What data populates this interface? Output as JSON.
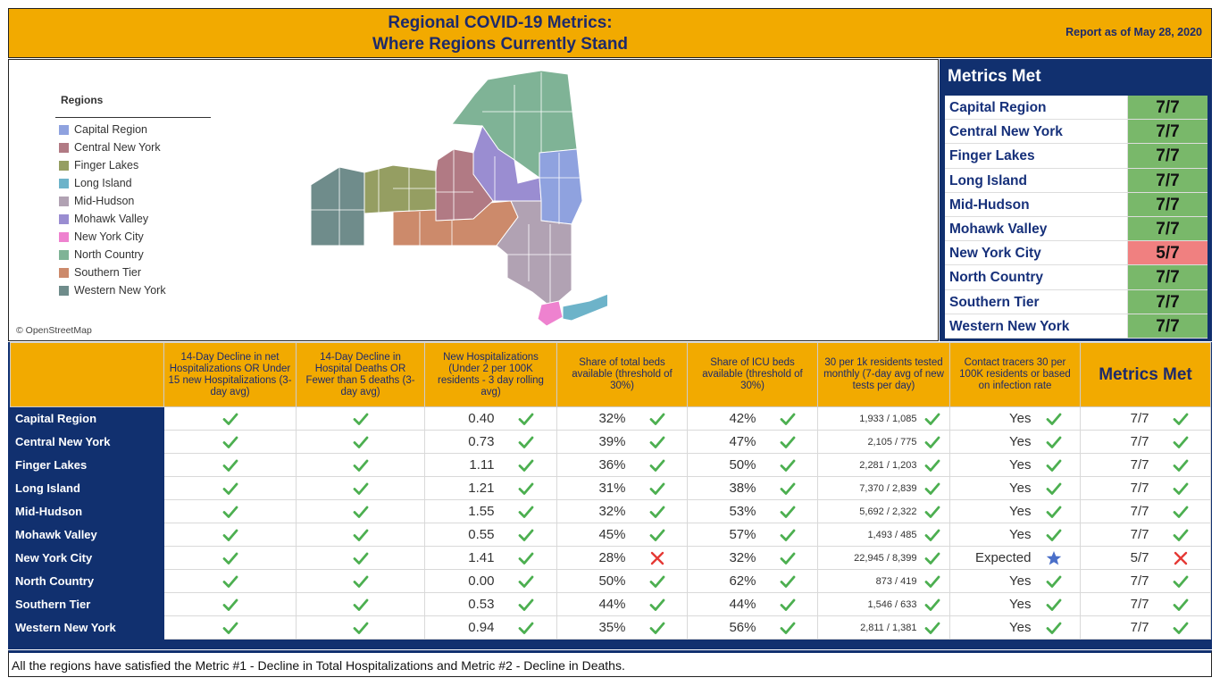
{
  "header": {
    "title_line1": "Regional COVID-19 Metrics:",
    "title_line2": "Where Regions Currently Stand",
    "report_date": "Report as of May 28, 2020"
  },
  "legend": {
    "title": "Regions",
    "items": [
      {
        "label": "Capital Region",
        "color": "#8fa2df"
      },
      {
        "label": "Central New York",
        "color": "#b17a84"
      },
      {
        "label": "Finger Lakes",
        "color": "#959e62"
      },
      {
        "label": "Long Island",
        "color": "#6db3c9"
      },
      {
        "label": "Mid-Hudson",
        "color": "#b1a2b3"
      },
      {
        "label": "Mohawk Valley",
        "color": "#9a8dd1"
      },
      {
        "label": "New York City",
        "color": "#ee82cf"
      },
      {
        "label": "North Country",
        "color": "#7fb396"
      },
      {
        "label": "Southern Tier",
        "color": "#cc8a6b"
      },
      {
        "label": "Western New York",
        "color": "#6f8c8b"
      }
    ],
    "attribution": "© OpenStreetMap"
  },
  "metrics_panel": {
    "title": "Metrics Met",
    "rows": [
      {
        "region": "Capital Region",
        "value": "7/7",
        "status": "good"
      },
      {
        "region": "Central New York",
        "value": "7/7",
        "status": "good"
      },
      {
        "region": "Finger Lakes",
        "value": "7/7",
        "status": "good"
      },
      {
        "region": "Long Island",
        "value": "7/7",
        "status": "good"
      },
      {
        "region": "Mid-Hudson",
        "value": "7/7",
        "status": "good"
      },
      {
        "region": "Mohawk Valley",
        "value": "7/7",
        "status": "good"
      },
      {
        "region": "New York City",
        "value": "5/7",
        "status": "bad"
      },
      {
        "region": "North Country",
        "value": "7/7",
        "status": "good"
      },
      {
        "region": "Southern Tier",
        "value": "7/7",
        "status": "good"
      },
      {
        "region": "Western New York",
        "value": "7/7",
        "status": "good"
      }
    ]
  },
  "table": {
    "headers": [
      "",
      "14-Day Decline in net Hospitalizations OR Under 15 new Hospitalizations (3-day avg)",
      "14-Day Decline in Hospital Deaths OR Fewer than 5 deaths (3-day avg)",
      "New Hospitalizations (Under 2 per 100K residents - 3 day rolling avg)",
      "Share of total beds available (threshold of 30%)",
      "Share of ICU beds available (threshold of 30%)",
      "30 per 1k residents tested monthly (7-day avg of new tests per day)",
      "Contact tracers 30 per 100K residents or based on infection rate",
      "Metrics Met"
    ],
    "rows": [
      {
        "region": "Capital Region",
        "m1": "check",
        "m2": "check",
        "hosp": "0.40",
        "hosp_s": "check",
        "beds": "32%",
        "beds_s": "check",
        "icu": "42%",
        "icu_s": "check",
        "tests": "1,933 / 1,085",
        "tests_s": "check",
        "tracers": "Yes",
        "tracers_s": "check",
        "met": "7/7",
        "met_s": "check"
      },
      {
        "region": "Central New York",
        "m1": "check",
        "m2": "check",
        "hosp": "0.73",
        "hosp_s": "check",
        "beds": "39%",
        "beds_s": "check",
        "icu": "47%",
        "icu_s": "check",
        "tests": "2,105 / 775",
        "tests_s": "check",
        "tracers": "Yes",
        "tracers_s": "check",
        "met": "7/7",
        "met_s": "check"
      },
      {
        "region": "Finger Lakes",
        "m1": "check",
        "m2": "check",
        "hosp": "1.11",
        "hosp_s": "check",
        "beds": "36%",
        "beds_s": "check",
        "icu": "50%",
        "icu_s": "check",
        "tests": "2,281 / 1,203",
        "tests_s": "check",
        "tracers": "Yes",
        "tracers_s": "check",
        "met": "7/7",
        "met_s": "check"
      },
      {
        "region": "Long Island",
        "m1": "check",
        "m2": "check",
        "hosp": "1.21",
        "hosp_s": "check",
        "beds": "31%",
        "beds_s": "check",
        "icu": "38%",
        "icu_s": "check",
        "tests": "7,370 / 2,839",
        "tests_s": "check",
        "tracers": "Yes",
        "tracers_s": "check",
        "met": "7/7",
        "met_s": "check"
      },
      {
        "region": "Mid-Hudson",
        "m1": "check",
        "m2": "check",
        "hosp": "1.55",
        "hosp_s": "check",
        "beds": "32%",
        "beds_s": "check",
        "icu": "53%",
        "icu_s": "check",
        "tests": "5,692 / 2,322",
        "tests_s": "check",
        "tracers": "Yes",
        "tracers_s": "check",
        "met": "7/7",
        "met_s": "check"
      },
      {
        "region": "Mohawk Valley",
        "m1": "check",
        "m2": "check",
        "hosp": "0.55",
        "hosp_s": "check",
        "beds": "45%",
        "beds_s": "check",
        "icu": "57%",
        "icu_s": "check",
        "tests": "1,493 / 485",
        "tests_s": "check",
        "tracers": "Yes",
        "tracers_s": "check",
        "met": "7/7",
        "met_s": "check"
      },
      {
        "region": "New York City",
        "m1": "check",
        "m2": "check",
        "hosp": "1.41",
        "hosp_s": "check",
        "beds": "28%",
        "beds_s": "x",
        "icu": "32%",
        "icu_s": "check",
        "tests": "22,945 / 8,399",
        "tests_s": "check",
        "tracers": "Expected",
        "tracers_s": "star",
        "met": "5/7",
        "met_s": "x"
      },
      {
        "region": "North Country",
        "m1": "check",
        "m2": "check",
        "hosp": "0.00",
        "hosp_s": "check",
        "beds": "50%",
        "beds_s": "check",
        "icu": "62%",
        "icu_s": "check",
        "tests": "873 / 419",
        "tests_s": "check",
        "tracers": "Yes",
        "tracers_s": "check",
        "met": "7/7",
        "met_s": "check"
      },
      {
        "region": "Southern Tier",
        "m1": "check",
        "m2": "check",
        "hosp": "0.53",
        "hosp_s": "check",
        "beds": "44%",
        "beds_s": "check",
        "icu": "44%",
        "icu_s": "check",
        "tests": "1,546 / 633",
        "tests_s": "check",
        "tracers": "Yes",
        "tracers_s": "check",
        "met": "7/7",
        "met_s": "check"
      },
      {
        "region": "Western New York",
        "m1": "check",
        "m2": "check",
        "hosp": "0.94",
        "hosp_s": "check",
        "beds": "35%",
        "beds_s": "check",
        "icu": "56%",
        "icu_s": "check",
        "tests": "2,811 / 1,381",
        "tests_s": "check",
        "tracers": "Yes",
        "tracers_s": "check",
        "met": "7/7",
        "met_s": "check"
      }
    ]
  },
  "footer": {
    "note": "All the regions have satisfied the Metric #1 - Decline in Total Hospitalizations and Metric #2 - Decline in Deaths."
  },
  "colors": {
    "navy": "#11306f",
    "gold": "#f2aa00",
    "check_green": "#4caf50",
    "x_red": "#e53935",
    "star_blue": "#4a6fc9",
    "met_good": "#79b86a",
    "met_bad": "#f08080"
  }
}
